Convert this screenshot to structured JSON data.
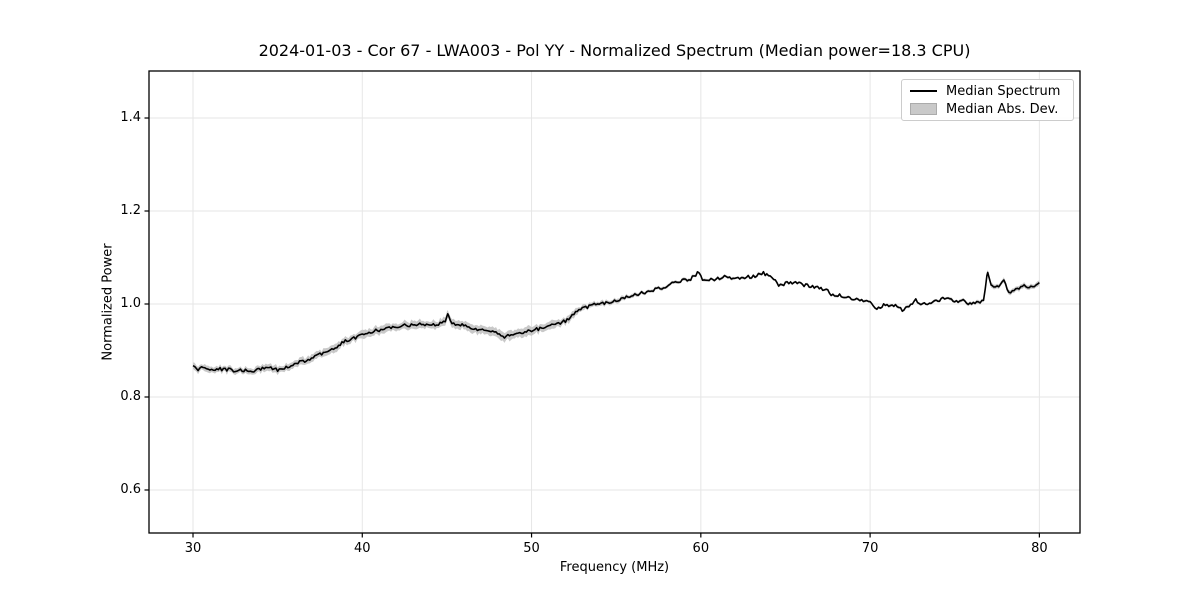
{
  "figure": {
    "title": "2024-01-03 - Cor 67 - LWA003 - Pol YY - Normalized Spectrum (Median power=18.3 CPU)",
    "date": "2024-01-03",
    "correlator": "Cor 67",
    "antenna": "LWA003",
    "polarization": "Pol YY",
    "median_power_cpu": 18.3
  },
  "colors": {
    "median_line": "#000000",
    "mad_band": "#c9c9c9",
    "mad_band_border": "#ababab",
    "grid": "#e6e6e6",
    "spine": "#000000",
    "text": "#000000",
    "legend_border": "#cccccc",
    "background": "#ffffff"
  },
  "chart_data": {
    "type": "line",
    "title": "2024-01-03 - Cor 67 - LWA003 - Pol YY - Normalized Spectrum (Median power=18.3 CPU)",
    "xlabel": "Frequency (MHz)",
    "ylabel": "Normalized Power",
    "xlim": [
      27.4,
      82.4
    ],
    "ylim": [
      0.5075,
      1.5011
    ],
    "xticks": [
      30,
      40,
      50,
      60,
      70,
      80
    ],
    "yticks": [
      0.6,
      0.8,
      1.0,
      1.2,
      1.4
    ],
    "grid": true,
    "legend": {
      "position": "upper right",
      "entries": [
        {
          "label": "Median Spectrum",
          "type": "line",
          "color": "#000000"
        },
        {
          "label": "Median Abs. Dev.",
          "type": "patch",
          "color": "#c9c9c9"
        }
      ]
    },
    "render_noise": {
      "amplitude": 0.0035,
      "step_mhz": 0.1,
      "mad_jitter": 0.25
    },
    "series": [
      {
        "name": "Median Spectrum",
        "type": "line",
        "color": "#000000",
        "points": [
          [
            30.0,
            0.864
          ],
          [
            30.3,
            0.86
          ],
          [
            30.6,
            0.863
          ],
          [
            31.0,
            0.861
          ],
          [
            31.5,
            0.86
          ],
          [
            32.0,
            0.859
          ],
          [
            32.5,
            0.857
          ],
          [
            33.0,
            0.857
          ],
          [
            33.5,
            0.855
          ],
          [
            34.0,
            0.861
          ],
          [
            34.5,
            0.862
          ],
          [
            35.0,
            0.858
          ],
          [
            35.5,
            0.864
          ],
          [
            36.0,
            0.871
          ],
          [
            36.5,
            0.877
          ],
          [
            37.0,
            0.884
          ],
          [
            37.5,
            0.892
          ],
          [
            38.0,
            0.899
          ],
          [
            38.5,
            0.906
          ],
          [
            38.8,
            0.918
          ],
          [
            39.2,
            0.922
          ],
          [
            39.6,
            0.928
          ],
          [
            40.0,
            0.934
          ],
          [
            40.5,
            0.94
          ],
          [
            41.0,
            0.944
          ],
          [
            41.5,
            0.949
          ],
          [
            42.0,
            0.951
          ],
          [
            42.5,
            0.954
          ],
          [
            43.0,
            0.955
          ],
          [
            43.5,
            0.957
          ],
          [
            44.0,
            0.955
          ],
          [
            44.5,
            0.957
          ],
          [
            44.9,
            0.962
          ],
          [
            45.05,
            0.977
          ],
          [
            45.2,
            0.962
          ],
          [
            45.5,
            0.957
          ],
          [
            46.0,
            0.954
          ],
          [
            46.5,
            0.949
          ],
          [
            47.0,
            0.944
          ],
          [
            47.5,
            0.941
          ],
          [
            48.0,
            0.937
          ],
          [
            48.4,
            0.929
          ],
          [
            48.7,
            0.934
          ],
          [
            49.0,
            0.936
          ],
          [
            49.5,
            0.94
          ],
          [
            50.0,
            0.944
          ],
          [
            50.5,
            0.947
          ],
          [
            51.0,
            0.951
          ],
          [
            51.5,
            0.957
          ],
          [
            52.0,
            0.964
          ],
          [
            52.3,
            0.972
          ],
          [
            52.6,
            0.983
          ],
          [
            53.0,
            0.99
          ],
          [
            53.5,
            0.996
          ],
          [
            54.0,
            1.001
          ],
          [
            54.5,
            1.003
          ],
          [
            55.0,
            1.007
          ],
          [
            55.5,
            1.013
          ],
          [
            56.0,
            1.018
          ],
          [
            56.5,
            1.023
          ],
          [
            57.0,
            1.027
          ],
          [
            57.5,
            1.033
          ],
          [
            58.0,
            1.039
          ],
          [
            58.5,
            1.046
          ],
          [
            59.0,
            1.051
          ],
          [
            59.4,
            1.054
          ],
          [
            59.9,
            1.069
          ],
          [
            60.1,
            1.05
          ],
          [
            60.5,
            1.051
          ],
          [
            61.0,
            1.054
          ],
          [
            61.5,
            1.059
          ],
          [
            62.0,
            1.054
          ],
          [
            62.5,
            1.057
          ],
          [
            63.0,
            1.059
          ],
          [
            63.7,
            1.066
          ],
          [
            64.2,
            1.056
          ],
          [
            64.6,
            1.041
          ],
          [
            65.0,
            1.044
          ],
          [
            65.5,
            1.047
          ],
          [
            66.0,
            1.041
          ],
          [
            66.5,
            1.039
          ],
          [
            67.0,
            1.034
          ],
          [
            67.5,
            1.028
          ],
          [
            67.8,
            1.018
          ],
          [
            68.2,
            1.02
          ],
          [
            68.6,
            1.014
          ],
          [
            69.0,
            1.011
          ],
          [
            69.5,
            1.007
          ],
          [
            70.0,
            1.002
          ],
          [
            70.4,
            0.989
          ],
          [
            70.8,
            0.997
          ],
          [
            71.2,
            0.994
          ],
          [
            71.6,
            0.996
          ],
          [
            71.9,
            0.987
          ],
          [
            72.3,
            0.995
          ],
          [
            72.7,
            1.008
          ],
          [
            73.1,
            0.999
          ],
          [
            73.5,
            1.002
          ],
          [
            73.9,
            1.007
          ],
          [
            74.3,
            1.011
          ],
          [
            74.7,
            1.013
          ],
          [
            75.1,
            1.004
          ],
          [
            75.5,
            1.009
          ],
          [
            75.9,
            0.999
          ],
          [
            76.3,
            1.003
          ],
          [
            76.7,
            1.008
          ],
          [
            76.95,
            1.071
          ],
          [
            77.15,
            1.04
          ],
          [
            77.5,
            1.036
          ],
          [
            77.9,
            1.049
          ],
          [
            78.2,
            1.024
          ],
          [
            78.6,
            1.03
          ],
          [
            79.0,
            1.04
          ],
          [
            79.3,
            1.034
          ],
          [
            79.6,
            1.038
          ],
          [
            80.0,
            1.048
          ]
        ]
      },
      {
        "name": "Median Abs. Dev.",
        "type": "band",
        "color": "#c9c9c9",
        "mad_points": [
          [
            30,
            0.007
          ],
          [
            33,
            0.0065
          ],
          [
            36,
            0.008
          ],
          [
            40,
            0.008
          ],
          [
            44,
            0.008
          ],
          [
            46,
            0.0085
          ],
          [
            48.5,
            0.01
          ],
          [
            50,
            0.009
          ],
          [
            52,
            0.008
          ],
          [
            53,
            0.006
          ],
          [
            54,
            0.005
          ],
          [
            55,
            0.0045
          ],
          [
            56,
            0.004
          ],
          [
            58,
            0.0035
          ],
          [
            60,
            0.003
          ],
          [
            63,
            0.0028
          ],
          [
            66,
            0.0026
          ],
          [
            69,
            0.0025
          ],
          [
            71,
            0.0027
          ],
          [
            73,
            0.0028
          ],
          [
            75,
            0.003
          ],
          [
            76.5,
            0.0035
          ],
          [
            77,
            0.005
          ],
          [
            78,
            0.0048
          ],
          [
            79,
            0.005
          ],
          [
            80,
            0.0055
          ]
        ]
      }
    ]
  }
}
